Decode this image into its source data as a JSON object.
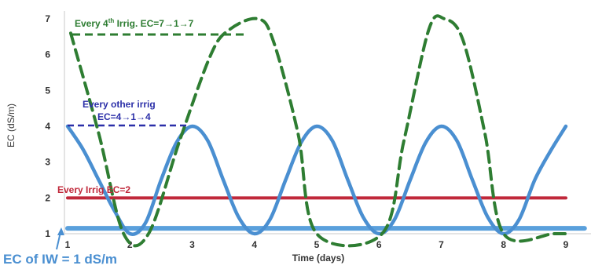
{
  "chart_data": {
    "type": "line",
    "xlabel": "Time (days)",
    "ylabel": "EC (dS/m)",
    "xlim": [
      1,
      9
    ],
    "ylim": [
      1,
      7
    ],
    "x_ticks": [
      "1",
      "2",
      "3",
      "4",
      "5",
      "6",
      "7",
      "8",
      "9"
    ],
    "y_ticks": [
      "1",
      "2",
      "3",
      "4",
      "5",
      "6",
      "7"
    ],
    "grid": false,
    "colors": {
      "blue": "#4a8fd1",
      "green": "#2e7d32",
      "red": "#c0283a",
      "navy": "#2b2fa8",
      "iw": "#5aa0dc"
    },
    "series": [
      {
        "key": "every_irrig",
        "style": "solid",
        "points": [
          [
            1,
            2
          ],
          [
            9.0,
            2
          ]
        ]
      },
      {
        "key": "every_other",
        "style": "solid",
        "points": [
          [
            1,
            4
          ],
          [
            1.25,
            3.35
          ],
          [
            1.5,
            2.5
          ],
          [
            1.75,
            1.65
          ],
          [
            2,
            1
          ],
          [
            2.25,
            1.3
          ],
          [
            2.5,
            2.5
          ],
          [
            2.75,
            3.55
          ],
          [
            3,
            4
          ],
          [
            3.25,
            3.6
          ],
          [
            3.5,
            2.5
          ],
          [
            3.75,
            1.45
          ],
          [
            4,
            1
          ],
          [
            4.25,
            1.4
          ],
          [
            4.5,
            2.5
          ],
          [
            4.75,
            3.55
          ],
          [
            5,
            4
          ],
          [
            5.25,
            3.6
          ],
          [
            5.5,
            2.5
          ],
          [
            5.75,
            1.45
          ],
          [
            6,
            1
          ],
          [
            6.25,
            1.4
          ],
          [
            6.5,
            2.5
          ],
          [
            6.75,
            3.55
          ],
          [
            7,
            4
          ],
          [
            7.25,
            3.6
          ],
          [
            7.5,
            2.5
          ],
          [
            7.75,
            1.45
          ],
          [
            8,
            1
          ],
          [
            8.25,
            1.4
          ],
          [
            8.5,
            2.5
          ],
          [
            8.75,
            3.3
          ],
          [
            9,
            4
          ]
        ]
      },
      {
        "key": "every_4th",
        "style": "dashed",
        "points": [
          [
            1.05,
            6.6
          ],
          [
            1.5,
            3.8
          ],
          [
            1.9,
            1
          ],
          [
            2.3,
            1
          ],
          [
            2.8,
            3.6
          ],
          [
            3.3,
            6.0
          ],
          [
            3.6,
            6.7
          ],
          [
            4.05,
            7.0
          ],
          [
            4.3,
            6.4
          ],
          [
            4.7,
            3.8
          ],
          [
            5.0,
            1
          ],
          [
            6.05,
            1
          ],
          [
            6.4,
            3.6
          ],
          [
            6.8,
            6.7
          ],
          [
            7.05,
            7.0
          ],
          [
            7.35,
            6.4
          ],
          [
            7.7,
            3.8
          ],
          [
            8.0,
            1
          ],
          [
            8.8,
            1
          ],
          [
            9.0,
            1.0
          ]
        ]
      },
      {
        "key": "iw",
        "style": "solid",
        "points": [
          [
            1,
            1.15
          ],
          [
            9.3,
            1.15
          ]
        ]
      }
    ],
    "annotations": {
      "every_4th": {
        "pre": "Every 4",
        "sup": "th",
        "post": " Irrig. EC=7→1→7"
      },
      "every_other_line1": "Every other irrig",
      "every_other_line2": "EC=4→1→4",
      "every_irrig": "Every Irrig EC=2",
      "iw": "EC of IW = 1 dS/m"
    }
  }
}
